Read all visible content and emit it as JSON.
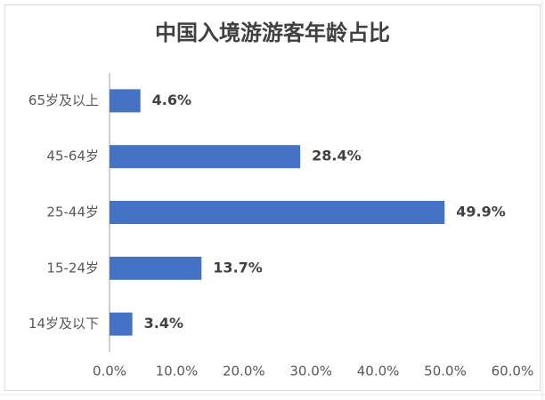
{
  "chart_data": {
    "type": "bar",
    "orientation": "horizontal",
    "title": "中国入境游游客年龄占比",
    "categories": [
      "65岁及以上",
      "45-64岁",
      "25-44岁",
      "15-24岁",
      "14岁及以下"
    ],
    "values": [
      4.6,
      28.4,
      49.9,
      13.7,
      3.4
    ],
    "value_labels": [
      "4.6%",
      "28.4%",
      "49.9%",
      "13.7%",
      "3.4%"
    ],
    "color": "#4472c4",
    "xlim": [
      0,
      60
    ],
    "xticks": [
      {
        "value": 0,
        "label": "0.0%"
      },
      {
        "value": 10,
        "label": "10.0%"
      },
      {
        "value": 20,
        "label": "20.0%"
      },
      {
        "value": 30,
        "label": "30.0%"
      },
      {
        "value": 40,
        "label": "40.0%"
      },
      {
        "value": 50,
        "label": "50.0%"
      },
      {
        "value": 60,
        "label": "60.0%"
      }
    ],
    "grid": false
  }
}
